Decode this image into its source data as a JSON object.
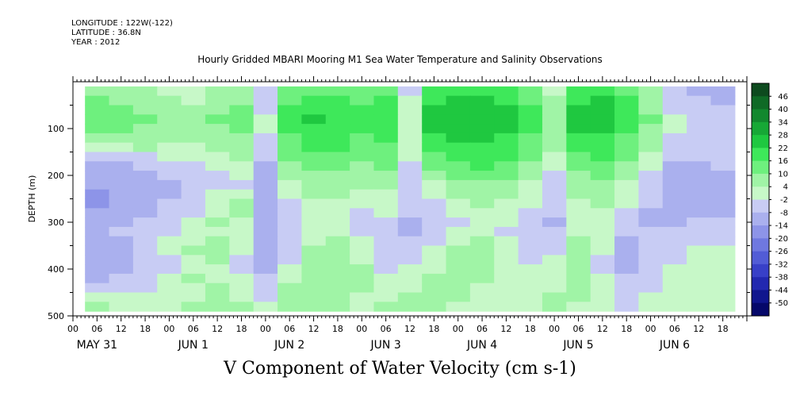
{
  "meta": {
    "longitude": "LONGITUDE : 122W(-122)",
    "latitude": "LATITUDE : 36.8N",
    "year": "YEAR : 2012"
  },
  "chart_data": {
    "type": "heatmap",
    "title": "Hourly Gridded MBARI Mooring M1 Sea Water Temperature and Salinity Observations",
    "subtitle": "V Component of Water Velocity (cm s-1)",
    "ylabel": "DEPTH (m)",
    "ylim": [
      500,
      0
    ],
    "y_ticks": [
      100,
      200,
      300,
      400,
      500
    ],
    "x_hour_ticks": [
      "00",
      "06",
      "12",
      "18",
      "00",
      "06",
      "12",
      "18",
      "00",
      "06",
      "12",
      "18",
      "00",
      "06",
      "12",
      "18",
      "00",
      "06",
      "12",
      "18",
      "00",
      "06",
      "12",
      "18",
      "00",
      "06",
      "12",
      "18"
    ],
    "x_day_labels": [
      "MAY 31",
      "JUN  1",
      "JUN  2",
      "JUN  3",
      "JUN  4",
      "JUN  5",
      "JUN  6"
    ],
    "colorbar_levels": [
      "46",
      "40",
      "34",
      "28",
      "22",
      "16",
      "10",
      "4",
      "-2",
      "-8",
      "-14",
      "-20",
      "-26",
      "-32",
      "-38",
      "-44",
      "-50"
    ],
    "colorbar_colors": [
      "#0d4a1e",
      "#0f6a26",
      "#12882e",
      "#17a836",
      "#1fc840",
      "#3ee85a",
      "#6ef07e",
      "#a0f4a6",
      "#c7f8c8",
      "#c8ccf4",
      "#aab0ee",
      "#8d94e8",
      "#6f78e0",
      "#525cd6",
      "#3840c8",
      "#2228b0",
      "#10168e",
      "#05086a"
    ],
    "depth_levels_m": [
      20,
      40,
      60,
      80,
      100,
      120,
      140,
      160,
      180,
      200,
      220,
      240,
      260,
      280,
      300,
      320,
      340,
      360,
      380,
      400,
      420,
      440,
      460,
      480
    ],
    "time_hours_since_may31_00": [
      6,
      12,
      18,
      24,
      30,
      36,
      42,
      48,
      54,
      60,
      66,
      72,
      78,
      84,
      90,
      96,
      102,
      108,
      114,
      120,
      126,
      132,
      138,
      144,
      150,
      156,
      162
    ],
    "values_cm_s": [
      [
        8,
        6,
        4,
        2,
        1,
        4,
        6,
        -5,
        10,
        14,
        12,
        10,
        12,
        -4,
        16,
        18,
        18,
        16,
        12,
        2,
        16,
        20,
        14,
        4,
        -8,
        -10,
        -12
      ],
      [
        10,
        8,
        6,
        4,
        2,
        6,
        8,
        -6,
        14,
        18,
        16,
        14,
        16,
        -2,
        20,
        22,
        22,
        20,
        14,
        4,
        20,
        22,
        16,
        6,
        -6,
        -8,
        -10
      ],
      [
        12,
        10,
        8,
        6,
        4,
        8,
        10,
        -4,
        16,
        20,
        18,
        16,
        18,
        0,
        22,
        24,
        24,
        22,
        16,
        6,
        22,
        24,
        18,
        8,
        -4,
        -6,
        -8
      ],
      [
        12,
        12,
        10,
        8,
        6,
        10,
        10,
        -2,
        18,
        22,
        20,
        18,
        18,
        2,
        24,
        24,
        24,
        22,
        18,
        8,
        22,
        24,
        20,
        10,
        -2,
        -4,
        -6
      ],
      [
        10,
        10,
        8,
        6,
        6,
        8,
        10,
        -2,
        16,
        20,
        20,
        16,
        18,
        2,
        22,
        24,
        24,
        22,
        16,
        8,
        22,
        22,
        18,
        8,
        -2,
        -4,
        -6
      ],
      [
        8,
        8,
        6,
        4,
        4,
        6,
        8,
        -4,
        14,
        18,
        18,
        14,
        16,
        0,
        20,
        22,
        22,
        20,
        14,
        6,
        20,
        20,
        14,
        6,
        -4,
        -4,
        -4
      ],
      [
        2,
        2,
        4,
        2,
        2,
        4,
        6,
        -6,
        12,
        16,
        16,
        12,
        14,
        -2,
        18,
        20,
        20,
        18,
        12,
        4,
        18,
        18,
        12,
        4,
        -6,
        -6,
        -4
      ],
      [
        -6,
        -6,
        -4,
        -2,
        0,
        2,
        4,
        -8,
        10,
        14,
        14,
        10,
        12,
        -2,
        14,
        18,
        18,
        16,
        10,
        2,
        14,
        16,
        10,
        2,
        -8,
        -8,
        -6
      ],
      [
        -10,
        -10,
        -8,
        -6,
        -4,
        -2,
        0,
        -10,
        6,
        10,
        10,
        8,
        10,
        -4,
        10,
        14,
        16,
        14,
        6,
        -2,
        10,
        14,
        6,
        -2,
        -10,
        -10,
        -8
      ],
      [
        -12,
        -12,
        -10,
        -8,
        -6,
        -4,
        -2,
        -12,
        4,
        8,
        8,
        6,
        8,
        -6,
        6,
        10,
        12,
        10,
        4,
        -4,
        8,
        10,
        4,
        -4,
        -12,
        -12,
        -10
      ],
      [
        -14,
        -14,
        -12,
        -10,
        -8,
        -6,
        -4,
        -12,
        2,
        6,
        6,
        4,
        6,
        -6,
        2,
        6,
        8,
        6,
        2,
        -6,
        6,
        8,
        2,
        -6,
        -12,
        -14,
        -12
      ],
      [
        -16,
        -14,
        -12,
        -10,
        -8,
        -2,
        2,
        -14,
        -2,
        4,
        4,
        2,
        2,
        -8,
        -2,
        4,
        6,
        4,
        0,
        -6,
        4,
        6,
        0,
        -6,
        -14,
        -14,
        -12
      ],
      [
        -16,
        -14,
        -12,
        -8,
        -6,
        2,
        4,
        -14,
        -4,
        2,
        2,
        -2,
        0,
        -8,
        -4,
        0,
        4,
        2,
        -2,
        -8,
        2,
        4,
        -2,
        -8,
        -14,
        -12,
        -12
      ],
      [
        -14,
        -12,
        -10,
        -8,
        -4,
        2,
        4,
        -12,
        -6,
        0,
        0,
        -4,
        -2,
        -8,
        -6,
        -2,
        2,
        0,
        -4,
        -8,
        0,
        2,
        -4,
        -10,
        -12,
        -10,
        -10
      ],
      [
        -12,
        -10,
        -8,
        -6,
        -2,
        4,
        2,
        -12,
        -8,
        -2,
        -2,
        -6,
        -4,
        -10,
        -8,
        -4,
        0,
        -2,
        -6,
        -10,
        -2,
        0,
        -6,
        -10,
        -10,
        -8,
        -8
      ],
      [
        -10,
        -8,
        -6,
        -4,
        -2,
        2,
        0,
        -12,
        -8,
        -2,
        2,
        -4,
        -6,
        -10,
        -6,
        -2,
        2,
        -4,
        -8,
        -8,
        2,
        -2,
        -8,
        -8,
        -8,
        -6,
        -6
      ],
      [
        -10,
        -10,
        -6,
        -2,
        2,
        4,
        -2,
        -12,
        -6,
        2,
        4,
        -2,
        -8,
        -8,
        -4,
        2,
        4,
        -2,
        -8,
        -6,
        4,
        -2,
        -10,
        -8,
        -6,
        -4,
        -4
      ],
      [
        -12,
        -10,
        -6,
        -2,
        4,
        6,
        -2,
        -12,
        -4,
        4,
        6,
        0,
        -8,
        -6,
        -2,
        4,
        6,
        0,
        -6,
        -4,
        6,
        -2,
        -10,
        -8,
        -4,
        -2,
        -2
      ],
      [
        -14,
        -12,
        -8,
        -4,
        2,
        4,
        -4,
        -12,
        -4,
        4,
        6,
        2,
        -6,
        -4,
        0,
        6,
        8,
        2,
        -4,
        -2,
        6,
        -4,
        -10,
        -6,
        -4,
        -2,
        -2
      ],
      [
        -12,
        -10,
        -8,
        -4,
        2,
        2,
        -4,
        -10,
        -2,
        6,
        8,
        4,
        -4,
        -2,
        2,
        6,
        6,
        2,
        -2,
        -2,
        6,
        -4,
        -10,
        -6,
        -2,
        -2,
        -2
      ],
      [
        -10,
        -8,
        -6,
        -2,
        4,
        2,
        -2,
        -8,
        2,
        8,
        8,
        4,
        -2,
        0,
        4,
        6,
        4,
        2,
        -2,
        0,
        6,
        -2,
        -8,
        -4,
        -2,
        -2,
        -2
      ],
      [
        -4,
        -6,
        -4,
        -2,
        2,
        4,
        0,
        -6,
        4,
        8,
        6,
        4,
        0,
        2,
        6,
        6,
        2,
        0,
        -2,
        2,
        6,
        -2,
        -8,
        -4,
        -2,
        -2,
        -2
      ],
      [
        2,
        0,
        -2,
        0,
        2,
        4,
        2,
        -4,
        6,
        8,
        6,
        2,
        2,
        4,
        6,
        4,
        2,
        0,
        0,
        4,
        4,
        -2,
        -6,
        -2,
        -2,
        -2,
        -2
      ],
      [
        4,
        2,
        0,
        2,
        4,
        4,
        4,
        -2,
        6,
        6,
        4,
        2,
        4,
        4,
        4,
        2,
        2,
        2,
        2,
        4,
        2,
        -2,
        -4,
        -2,
        -2,
        -2,
        -2
      ]
    ]
  }
}
